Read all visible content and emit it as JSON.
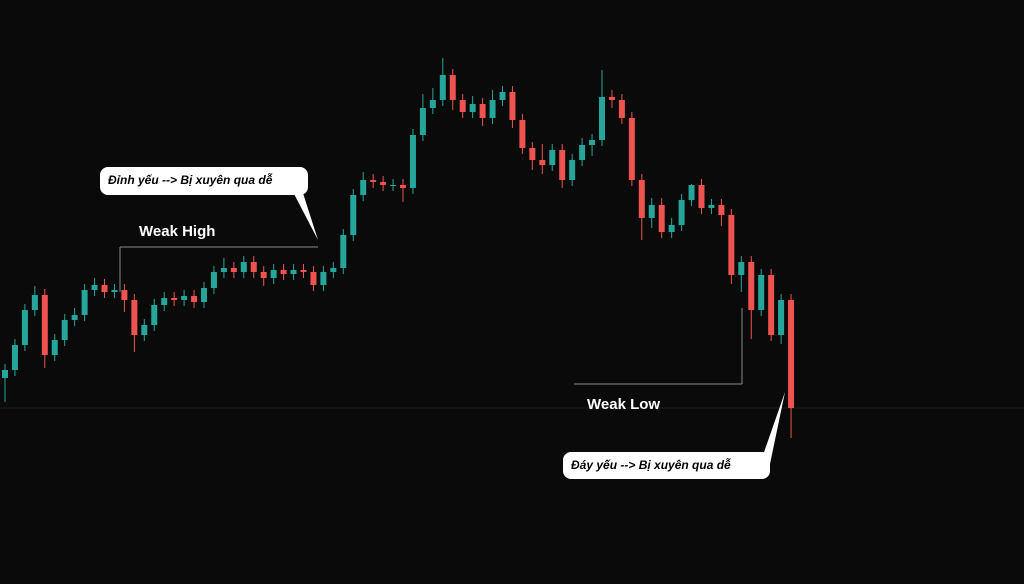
{
  "chart_data": {
    "type": "candlestick",
    "ylim": [
      0,
      584
    ],
    "up_color": "#26a69a",
    "down_color": "#ef5350",
    "open": [
      206,
      214,
      239,
      274,
      289,
      229,
      244,
      264,
      269,
      294,
      299,
      292,
      294,
      284,
      249,
      259,
      279,
      286,
      284,
      288,
      282,
      296,
      312,
      316,
      312,
      322,
      312,
      306,
      314,
      310,
      314,
      312,
      299,
      312,
      316,
      349,
      389,
      404,
      402,
      399,
      399,
      396,
      449,
      476,
      484,
      509,
      484,
      472,
      480,
      466,
      484,
      492,
      464,
      436,
      424,
      419,
      434,
      404,
      424,
      439,
      444,
      487,
      484,
      466,
      404,
      366,
      379,
      352,
      359,
      384,
      399,
      376,
      379,
      369,
      309,
      322,
      274,
      309,
      249,
      284
    ],
    "high": [
      220,
      245,
      280,
      298,
      295,
      250,
      270,
      276,
      300,
      306,
      305,
      300,
      300,
      290,
      265,
      285,
      292,
      292,
      294,
      294,
      302,
      318,
      326,
      322,
      328,
      328,
      318,
      320,
      320,
      320,
      320,
      318,
      318,
      322,
      355,
      395,
      412,
      410,
      408,
      405,
      405,
      455,
      490,
      496,
      526,
      515,
      490,
      488,
      486,
      494,
      498,
      498,
      470,
      442,
      440,
      440,
      440,
      430,
      446,
      450,
      514,
      494,
      490,
      472,
      410,
      386,
      386,
      366,
      390,
      400,
      405,
      385,
      385,
      375,
      328,
      328,
      315,
      315,
      290,
      290
    ],
    "low": [
      182,
      208,
      233,
      268,
      216,
      223,
      238,
      258,
      263,
      288,
      286,
      286,
      272,
      232,
      243,
      253,
      273,
      278,
      278,
      276,
      276,
      290,
      306,
      306,
      306,
      306,
      298,
      300,
      304,
      304,
      306,
      293,
      293,
      306,
      310,
      343,
      383,
      396,
      393,
      393,
      382,
      390,
      443,
      470,
      478,
      474,
      466,
      466,
      458,
      460,
      478,
      456,
      430,
      414,
      410,
      413,
      396,
      398,
      418,
      428,
      438,
      476,
      460,
      398,
      344,
      356,
      346,
      346,
      353,
      378,
      370,
      370,
      358,
      300,
      292,
      245,
      268,
      243,
      240,
      146
    ],
    "close": [
      214,
      239,
      274,
      289,
      229,
      244,
      264,
      269,
      294,
      299,
      292,
      294,
      284,
      249,
      259,
      279,
      286,
      284,
      288,
      282,
      296,
      312,
      316,
      312,
      322,
      312,
      306,
      314,
      310,
      314,
      312,
      299,
      312,
      316,
      349,
      389,
      404,
      402,
      399,
      399,
      396,
      449,
      476,
      484,
      509,
      484,
      472,
      480,
      466,
      484,
      492,
      464,
      436,
      424,
      419,
      434,
      404,
      424,
      439,
      444,
      487,
      484,
      466,
      404,
      366,
      379,
      352,
      359,
      384,
      399,
      376,
      379,
      369,
      309,
      322,
      274,
      309,
      249,
      284,
      176
    ],
    "annotations": {
      "weak_high": "Weak High",
      "weak_low": "Weak Low",
      "top_callout": "Đỉnh yếu --> Bị xuyên qua dễ",
      "bottom_callout": "Đáy yếu  --> Bị xuyên qua dễ"
    }
  }
}
